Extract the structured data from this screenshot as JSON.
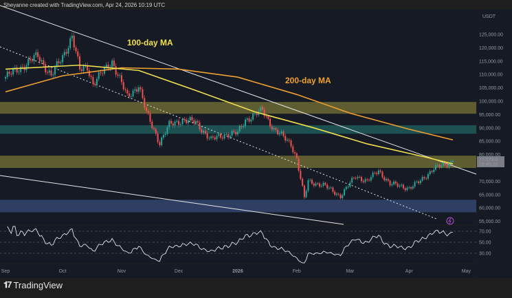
{
  "header": {
    "attribution": "Sheyanne created with TradingView.com, Apr 24, 2026 10:19 UTC"
  },
  "footer": {
    "brand": "TradingView"
  },
  "colors": {
    "bg": "#161a25",
    "up": "#26a69a",
    "down": "#ef5350",
    "ma100": "#f0e050",
    "ma200": "#f0a030",
    "zone_yellow": "#6b6a35",
    "zone_teal": "#1e5a58",
    "zone_blue": "#34466e",
    "rsi": "#dfe6f0"
  },
  "chart_data": {
    "type": "candlestick",
    "currency_label": "USDT",
    "y_ticks": [
      "125,000.00",
      "120,000.00",
      "115,000.00",
      "110,000.00",
      "105,000.00",
      "100,000.00",
      "95,000.00",
      "90,000.00",
      "85,000.00",
      "80,000.00",
      "70,000.00",
      "65,000.00",
      "60,000.00",
      "55,000.00"
    ],
    "ylim": [
      55000,
      127000
    ],
    "x_ticks": [
      "Sep",
      "Oct",
      "Nov",
      "Dec",
      "2026",
      "Feb",
      "Mar",
      "Apr",
      "May"
    ],
    "last_price": "77,570.0",
    "countdown": "19:40:20",
    "close_keypoints": [
      [
        "2025-09-01",
        109000
      ],
      [
        "2025-09-10",
        113000
      ],
      [
        "2025-09-18",
        117000
      ],
      [
        "2025-09-25",
        109500
      ],
      [
        "2025-10-01",
        116500
      ],
      [
        "2025-10-06",
        124500
      ],
      [
        "2025-10-10",
        111500
      ],
      [
        "2025-10-14",
        113000
      ],
      [
        "2025-10-17",
        106500
      ],
      [
        "2025-10-27",
        115000
      ],
      [
        "2025-11-04",
        101500
      ],
      [
        "2025-11-10",
        106000
      ],
      [
        "2025-11-14",
        95500
      ],
      [
        "2025-11-21",
        84500
      ],
      [
        "2025-11-26",
        91000
      ],
      [
        "2025-12-03",
        93000
      ],
      [
        "2025-12-10",
        92000
      ],
      [
        "2025-12-18",
        85500
      ],
      [
        "2025-12-25",
        87500
      ],
      [
        "2026-01-01",
        88000
      ],
      [
        "2026-01-05",
        93000
      ],
      [
        "2026-01-14",
        96500
      ],
      [
        "2026-01-20",
        89500
      ],
      [
        "2026-01-29",
        84000
      ],
      [
        "2026-02-01",
        78500
      ],
      [
        "2026-02-05",
        63500
      ],
      [
        "2026-02-07",
        70000
      ],
      [
        "2026-02-15",
        68500
      ],
      [
        "2026-02-24",
        64500
      ],
      [
        "2026-03-04",
        72000
      ],
      [
        "2026-03-10",
        70000
      ],
      [
        "2026-03-16",
        74000
      ],
      [
        "2026-03-22",
        69000
      ],
      [
        "2026-04-01",
        67500
      ],
      [
        "2026-04-07",
        70000
      ],
      [
        "2026-04-14",
        75000
      ],
      [
        "2026-04-20",
        76000
      ],
      [
        "2026-04-24",
        77570
      ]
    ],
    "ma100": {
      "label": "100-day MA",
      "keypoints": [
        [
          "2025-09-01",
          112000
        ],
        [
          "2025-10-10",
          113500
        ],
        [
          "2025-11-10",
          111500
        ],
        [
          "2025-12-10",
          104000
        ],
        [
          "2026-01-10",
          96000
        ],
        [
          "2026-02-10",
          90000
        ],
        [
          "2026-03-10",
          84000
        ],
        [
          "2026-04-10",
          79000
        ],
        [
          "2026-04-24",
          76500
        ]
      ]
    },
    "ma200": {
      "label": "200-day MA",
      "keypoints": [
        [
          "2025-09-01",
          103500
        ],
        [
          "2025-10-01",
          109500
        ],
        [
          "2025-11-01",
          112500
        ],
        [
          "2025-12-01",
          112000
        ],
        [
          "2026-01-01",
          109000
        ],
        [
          "2026-02-01",
          102500
        ],
        [
          "2026-03-01",
          95500
        ],
        [
          "2026-04-01",
          89500
        ],
        [
          "2026-04-24",
          85500
        ]
      ]
    },
    "zones": [
      {
        "color": "yellow",
        "range": [
          95300,
          99700
        ]
      },
      {
        "color": "teal",
        "range": [
          87800,
          91000
        ]
      },
      {
        "color": "yellow",
        "range": [
          75000,
          79600
        ]
      },
      {
        "color": "blue",
        "range": [
          58400,
          63100
        ]
      }
    ],
    "rsi": {
      "levels": [
        70,
        50,
        30
      ],
      "tick_labels": [
        "70.00",
        "50.00",
        "30.00"
      ]
    }
  }
}
